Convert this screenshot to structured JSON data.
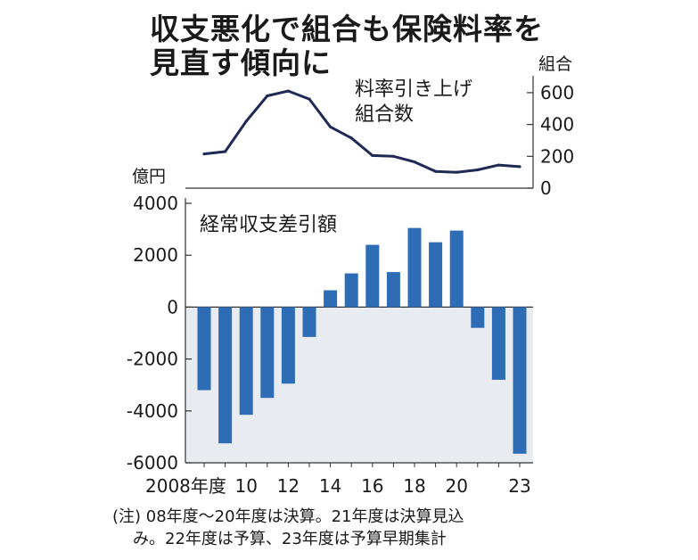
{
  "title_lines": [
    "収支悪化で組合も保険料率を",
    "見直す傾向に"
  ],
  "notes": [
    "(注) 08年度〜20年度は決算。21年度は決算見込",
    "み。22年度は予算、23年度は予算早期集計"
  ],
  "colors": {
    "bar": "#2e6db5",
    "line": "#1f2a55",
    "negative_bg": "#e8ebf0",
    "axis": "#333333"
  },
  "chart_data": [
    {
      "type": "line",
      "label_lines": [
        "料率引き上げ",
        "組合数"
      ],
      "y_unit": "組合",
      "x": [
        2008,
        2009,
        2010,
        2011,
        2012,
        2013,
        2014,
        2015,
        2016,
        2017,
        2018,
        2019,
        2020,
        2021,
        2022,
        2023
      ],
      "values": [
        215,
        230,
        420,
        580,
        610,
        560,
        385,
        315,
        205,
        200,
        165,
        105,
        100,
        115,
        145,
        135
      ],
      "ylim": [
        0,
        650
      ],
      "yticks": [
        0,
        200,
        400,
        600
      ]
    },
    {
      "type": "bar",
      "label": "経常収支差引額",
      "y_unit": "億円",
      "x": [
        2008,
        2009,
        2010,
        2011,
        2012,
        2013,
        2014,
        2015,
        2016,
        2017,
        2018,
        2019,
        2020,
        2021,
        2022,
        2023
      ],
      "values": [
        -3200,
        -5250,
        -4150,
        -3500,
        -2950,
        -1150,
        650,
        1300,
        2400,
        1350,
        3050,
        2500,
        2950,
        -800,
        -2800,
        -5650
      ],
      "ylim": [
        -6000,
        4000
      ],
      "yticks": [
        4000,
        2000,
        0,
        -2000,
        -4000,
        -6000
      ],
      "xtick_labels": [
        {
          "x": 2008,
          "text": "2008年度"
        },
        {
          "x": 2010,
          "text": "10"
        },
        {
          "x": 2012,
          "text": "12"
        },
        {
          "x": 2014,
          "text": "14"
        },
        {
          "x": 2016,
          "text": "16"
        },
        {
          "x": 2018,
          "text": "18"
        },
        {
          "x": 2020,
          "text": "20"
        },
        {
          "x": 2023,
          "text": "23"
        }
      ]
    }
  ]
}
